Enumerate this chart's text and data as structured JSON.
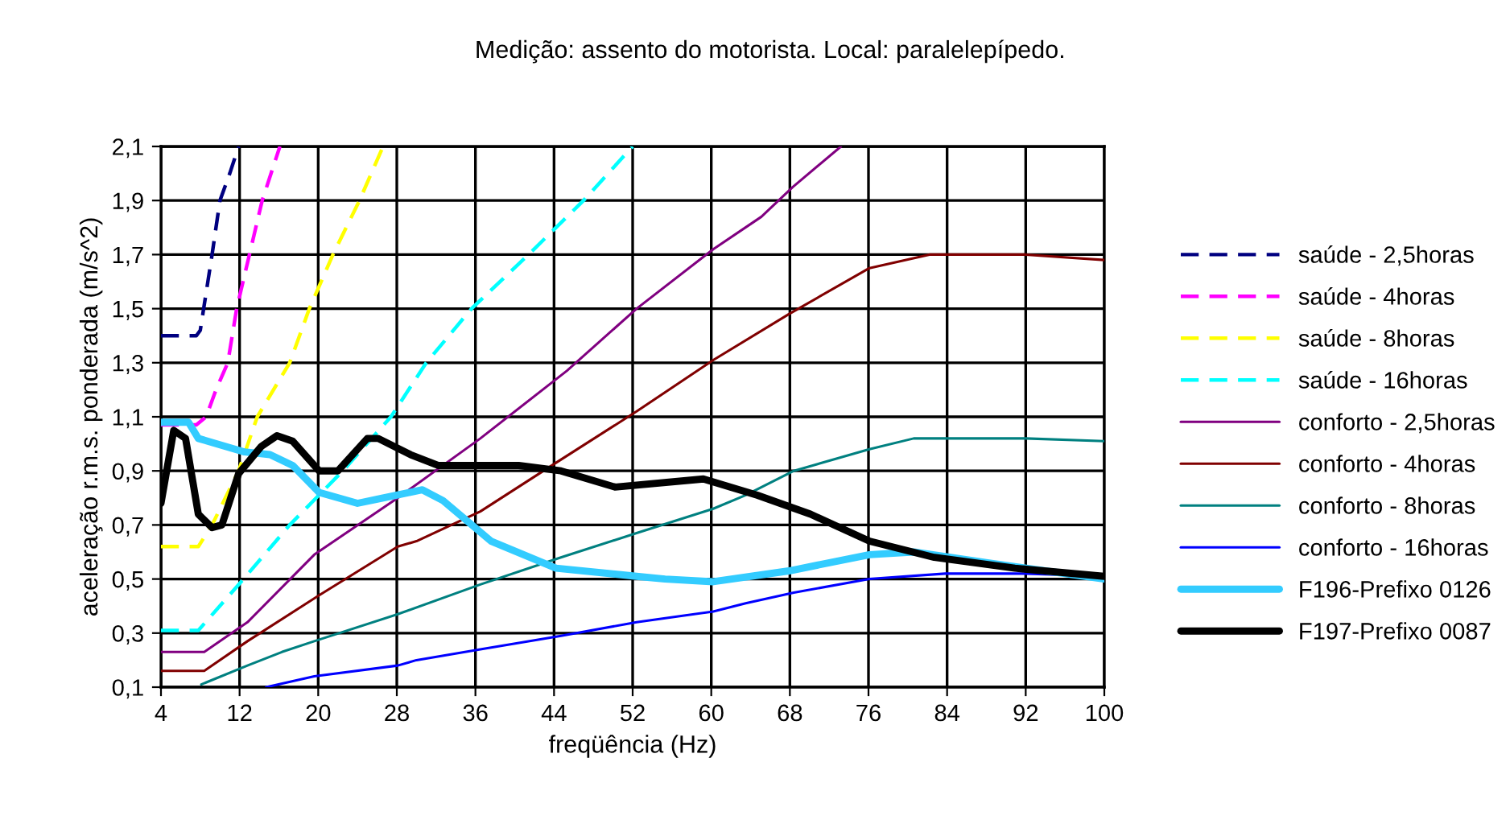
{
  "chart_data": {
    "type": "line",
    "title": "Medição: assento do motorista. Local: paralelepípedo.",
    "xlabel": "freqüência (Hz)",
    "ylabel": "aceleração r.m.s. ponderada (m/s^2)",
    "xlim": [
      4,
      100
    ],
    "xticks": [
      4,
      12,
      20,
      28,
      36,
      44,
      52,
      60,
      68,
      76,
      84,
      92,
      100
    ],
    "ylim": [
      0.1,
      2.1
    ],
    "yticks": [
      {
        "value": 0.1,
        "label": "0,1"
      },
      {
        "value": 0.3,
        "label": "0,3"
      },
      {
        "value": 0.5,
        "label": "0,5"
      },
      {
        "value": 0.7,
        "label": "0,7"
      },
      {
        "value": 0.9,
        "label": "0,9"
      },
      {
        "value": 1.1,
        "label": "1,1"
      },
      {
        "value": 1.3,
        "label": "1,3"
      },
      {
        "value": 1.5,
        "label": "1,5"
      },
      {
        "value": 1.7,
        "label": "1,7"
      },
      {
        "value": 1.9,
        "label": "1,9"
      },
      {
        "value": 2.1,
        "label": "2,1"
      }
    ],
    "grid": true,
    "legend": "right",
    "marker": "none",
    "series": [
      {
        "name": "saúde - 2,5horas",
        "color": "#000080",
        "line_style": "dashed",
        "x": [
          4,
          7.6,
          8.0,
          9.2,
          10.0,
          11.0,
          11.9
        ],
        "values": [
          1.4,
          1.4,
          1.42,
          1.7,
          1.9,
          2.0,
          2.1
        ]
      },
      {
        "name": "saúde - 4horas",
        "color": "#ff00ff",
        "line_style": "dashed",
        "x": [
          4,
          7.6,
          8.6,
          9.6,
          10.8,
          11.7,
          13.0,
          14.3,
          16.1
        ],
        "values": [
          1.07,
          1.07,
          1.1,
          1.2,
          1.3,
          1.5,
          1.7,
          1.9,
          2.1
        ]
      },
      {
        "name": "saúde - 8horas",
        "color": "#ffff00",
        "line_style": "dashed",
        "x": [
          4,
          7.8,
          9.2,
          11.9,
          13.8,
          17.1,
          19.1,
          21.5,
          24.2,
          26.6
        ],
        "values": [
          0.62,
          0.62,
          0.7,
          0.9,
          1.1,
          1.3,
          1.5,
          1.7,
          1.9,
          2.1
        ]
      },
      {
        "name": "saúde - 16horas",
        "color": "#00ffff",
        "line_style": "dashed",
        "x": [
          4,
          7.8,
          12.4,
          17.1,
          22.5,
          27.4,
          31.0,
          35.6,
          41.4,
          47.0,
          52.0
        ],
        "values": [
          0.31,
          0.31,
          0.5,
          0.7,
          0.9,
          1.1,
          1.3,
          1.5,
          1.7,
          1.9,
          2.1
        ]
      },
      {
        "name": "conforto - 2,5horas",
        "color": "#800080",
        "line_style": "solid",
        "x": [
          4,
          8.4,
          12.8,
          19.6,
          28.1,
          36.5,
          45.3,
          52.4,
          60.2,
          65.1,
          68.3,
          73.2
        ],
        "values": [
          0.23,
          0.23,
          0.34,
          0.59,
          0.8,
          1.02,
          1.27,
          1.5,
          1.72,
          1.84,
          1.95,
          2.1
        ]
      },
      {
        "name": "conforto - 4horas",
        "color": "#800000",
        "line_style": "solid",
        "x": [
          4,
          8.4,
          12.8,
          20.1,
          28.1,
          30,
          36.5,
          44.2,
          52.4,
          60.2,
          67.9,
          76.1,
          82.2,
          92.0,
          100
        ],
        "values": [
          0.16,
          0.16,
          0.27,
          0.44,
          0.62,
          0.64,
          0.75,
          0.93,
          1.12,
          1.31,
          1.48,
          1.65,
          1.7,
          1.7,
          1.68
        ]
      },
      {
        "name": "conforto - 8horas",
        "color": "#008080",
        "line_style": "solid",
        "x": [
          8.1,
          12.8,
          16.3,
          19.6,
          28.1,
          36.5,
          44.7,
          52.4,
          60.2,
          63.5,
          68.4,
          76.1,
          80.6,
          84.3,
          92.0,
          100
        ],
        "values": [
          0.11,
          0.18,
          0.23,
          0.27,
          0.37,
          0.48,
          0.58,
          0.67,
          0.76,
          0.81,
          0.9,
          0.98,
          1.02,
          1.02,
          1.02,
          1.01
        ]
      },
      {
        "name": "conforto - 16horas",
        "color": "#0000ff",
        "line_style": "solid",
        "x": [
          14.7,
          19.6,
          28.1,
          30,
          36.5,
          44.7,
          52.4,
          60.2,
          63.5,
          68.4,
          76.1,
          83.8,
          92,
          100
        ],
        "values": [
          0.1,
          0.14,
          0.18,
          0.2,
          0.24,
          0.29,
          0.34,
          0.38,
          0.41,
          0.45,
          0.5,
          0.52,
          0.52,
          0.51
        ]
      },
      {
        "name": "F196-Prefixo 0126",
        "color": "#33ccff",
        "line_style": "solid",
        "x": [
          4,
          6.8,
          7.8,
          12.5,
          15.1,
          17.4,
          20.1,
          24,
          26.6,
          30.6,
          32.7,
          37.6,
          44.2,
          52.4,
          55.3,
          60.2,
          67.9,
          76.1,
          80.6,
          88.1,
          100
        ],
        "values": [
          1.08,
          1.08,
          1.02,
          0.97,
          0.96,
          0.92,
          0.82,
          0.78,
          0.8,
          0.83,
          0.79,
          0.64,
          0.54,
          0.51,
          0.5,
          0.49,
          0.53,
          0.59,
          0.6,
          0.56,
          0.5
        ]
      },
      {
        "name": "F197-Prefixo 0087",
        "color": "#000000",
        "line_style": "solid",
        "x": [
          4,
          5.3,
          6.5,
          7.8,
          9.2,
          10.2,
          11.9,
          14.2,
          15.8,
          17.4,
          20.1,
          22,
          25,
          26.1,
          29.4,
          32.2,
          40.4,
          44.7,
          50.2,
          59.2,
          64.7,
          70.1,
          76.1,
          82.7,
          90.9,
          100
        ],
        "values": [
          0.78,
          1.05,
          1.02,
          0.74,
          0.69,
          0.7,
          0.89,
          0.99,
          1.03,
          1.01,
          0.9,
          0.9,
          1.02,
          1.02,
          0.96,
          0.92,
          0.92,
          0.9,
          0.84,
          0.87,
          0.81,
          0.74,
          0.64,
          0.58,
          0.54,
          0.51
        ]
      }
    ]
  }
}
